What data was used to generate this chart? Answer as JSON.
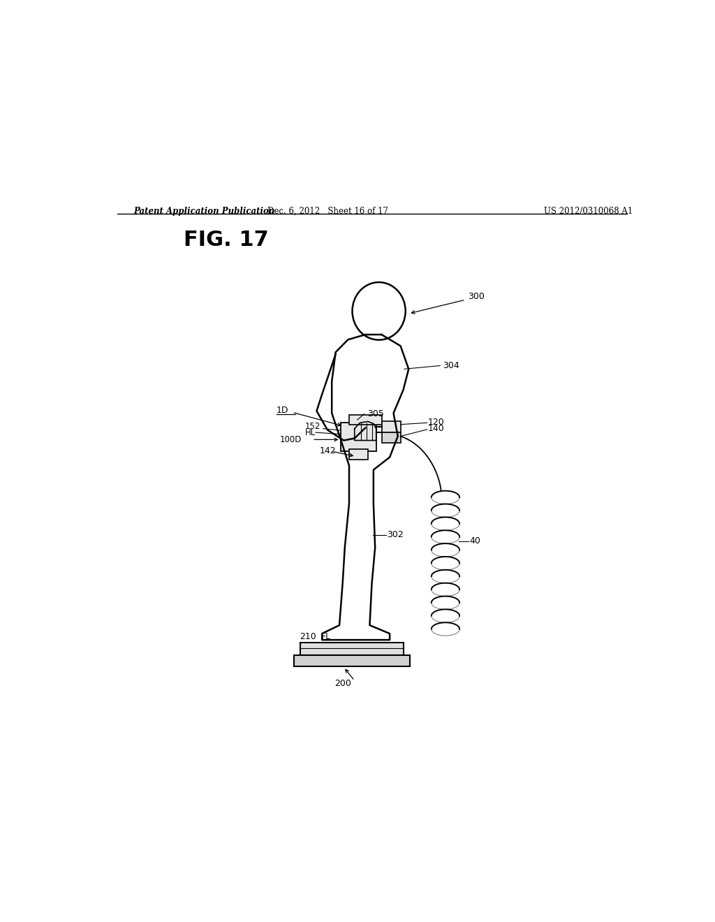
{
  "bg_color": "#ffffff",
  "header_left": "Patent Application Publication",
  "header_mid": "Dec. 6, 2012   Sheet 16 of 17",
  "header_right": "US 2012/0310068 A1",
  "fig_label": "FIG. 17"
}
